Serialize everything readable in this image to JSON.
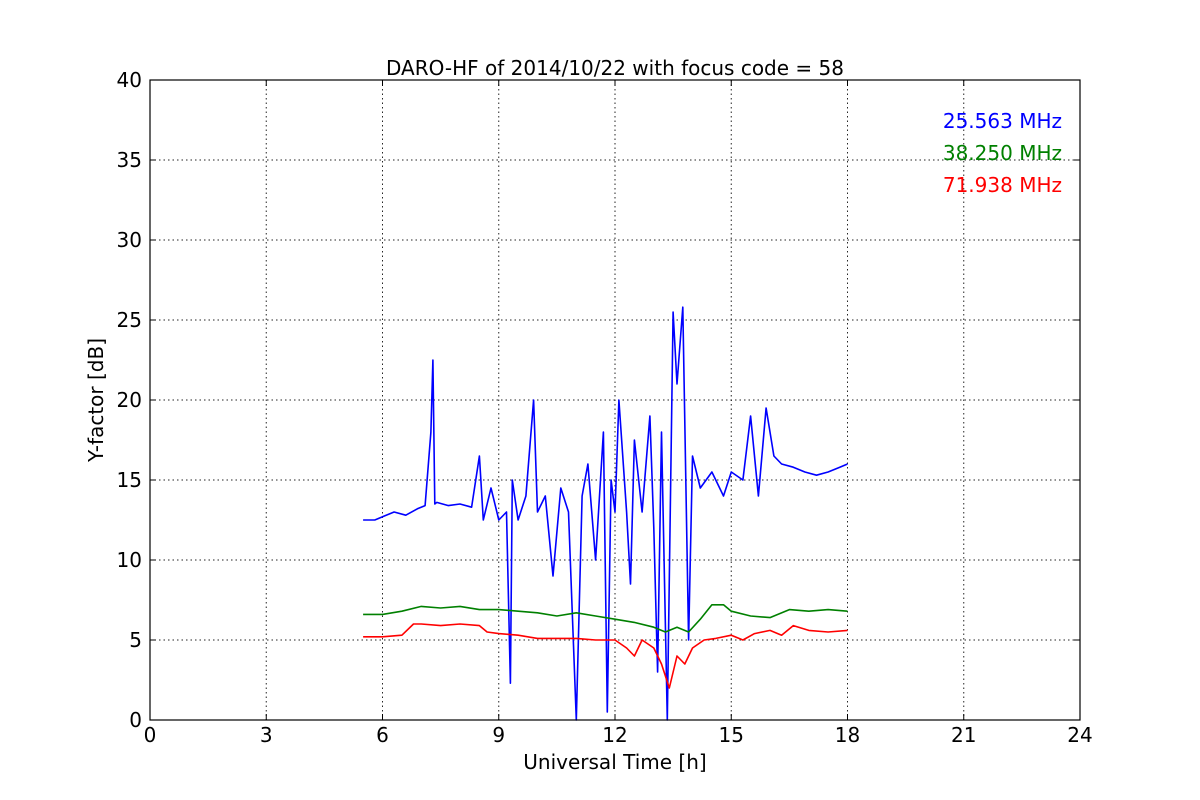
{
  "chart_data": {
    "type": "line",
    "title": "DARO-HF of 2014/10/22 with focus code = 58",
    "xlabel": "Universal Time [h]",
    "ylabel": "Y-factor [dB]",
    "xlim": [
      0,
      24
    ],
    "ylim": [
      0,
      40
    ],
    "xticks": [
      "0",
      "3",
      "6",
      "9",
      "12",
      "15",
      "18",
      "21",
      "24"
    ],
    "yticks": [
      "0",
      "5",
      "10",
      "15",
      "20",
      "25",
      "30",
      "35",
      "40"
    ],
    "grid": true,
    "legend_placement": "top-right",
    "series": [
      {
        "name": "25.563 MHz",
        "color": "#0000ff",
        "x": [
          5.5,
          5.8,
          6.0,
          6.3,
          6.6,
          6.9,
          7.1,
          7.25,
          7.3,
          7.35,
          7.4,
          7.7,
          8.0,
          8.3,
          8.5,
          8.6,
          8.8,
          9.0,
          9.2,
          9.3,
          9.35,
          9.5,
          9.7,
          9.9,
          10.0,
          10.2,
          10.4,
          10.6,
          10.8,
          11.0,
          11.15,
          11.3,
          11.5,
          11.7,
          11.8,
          11.9,
          12.0,
          12.1,
          12.3,
          12.4,
          12.5,
          12.7,
          12.9,
          13.0,
          13.1,
          13.2,
          13.35,
          13.5,
          13.6,
          13.75,
          13.9,
          14.0,
          14.2,
          14.5,
          14.8,
          15.0,
          15.3,
          15.5,
          15.7,
          15.9,
          16.1,
          16.3,
          16.6,
          16.9,
          17.2,
          17.5,
          17.8,
          18.0
        ],
        "y": [
          12.5,
          12.5,
          12.7,
          13.0,
          12.8,
          13.2,
          13.4,
          18.0,
          22.5,
          13.5,
          13.6,
          13.4,
          13.5,
          13.3,
          16.5,
          12.5,
          14.5,
          12.5,
          13.0,
          2.3,
          15.0,
          12.5,
          14.0,
          20.0,
          13.0,
          14.0,
          9.0,
          14.5,
          13.0,
          0.0,
          14.0,
          16.0,
          10.0,
          18.0,
          0.5,
          15.0,
          13.0,
          20.0,
          13.0,
          8.5,
          17.5,
          13.0,
          19.0,
          12.0,
          3.0,
          18.0,
          0.0,
          25.5,
          21.0,
          25.8,
          5.0,
          16.5,
          14.5,
          15.5,
          14.0,
          15.5,
          15.0,
          19.0,
          14.0,
          19.5,
          16.5,
          16.0,
          15.8,
          15.5,
          15.3,
          15.5,
          15.8,
          16.0
        ]
      },
      {
        "name": "38.250 MHz",
        "color": "#008000",
        "x": [
          5.5,
          6.0,
          6.5,
          7.0,
          7.5,
          8.0,
          8.5,
          9.0,
          9.5,
          10.0,
          10.5,
          11.0,
          11.5,
          12.0,
          12.5,
          13.0,
          13.3,
          13.6,
          13.9,
          14.2,
          14.5,
          14.8,
          15.0,
          15.5,
          16.0,
          16.5,
          17.0,
          17.5,
          18.0
        ],
        "y": [
          6.6,
          6.6,
          6.8,
          7.1,
          7.0,
          7.1,
          6.9,
          6.9,
          6.8,
          6.7,
          6.5,
          6.7,
          6.5,
          6.3,
          6.1,
          5.8,
          5.5,
          5.8,
          5.5,
          6.3,
          7.2,
          7.2,
          6.8,
          6.5,
          6.4,
          6.9,
          6.8,
          6.9,
          6.8
        ]
      },
      {
        "name": "71.938 MHz",
        "color": "#ff0000",
        "x": [
          5.5,
          6.0,
          6.5,
          6.8,
          7.0,
          7.5,
          8.0,
          8.5,
          8.7,
          9.0,
          9.5,
          10.0,
          10.5,
          11.0,
          11.5,
          12.0,
          12.3,
          12.5,
          12.7,
          13.0,
          13.2,
          13.4,
          13.6,
          13.8,
          14.0,
          14.3,
          14.6,
          15.0,
          15.3,
          15.6,
          16.0,
          16.3,
          16.6,
          17.0,
          17.5,
          18.0
        ],
        "y": [
          5.2,
          5.2,
          5.3,
          6.0,
          6.0,
          5.9,
          6.0,
          5.9,
          5.5,
          5.4,
          5.3,
          5.1,
          5.1,
          5.1,
          5.0,
          5.0,
          4.5,
          4.0,
          5.0,
          4.5,
          3.5,
          2.0,
          4.0,
          3.5,
          4.5,
          5.0,
          5.1,
          5.3,
          5.0,
          5.4,
          5.6,
          5.3,
          5.9,
          5.6,
          5.5,
          5.6
        ]
      }
    ]
  }
}
